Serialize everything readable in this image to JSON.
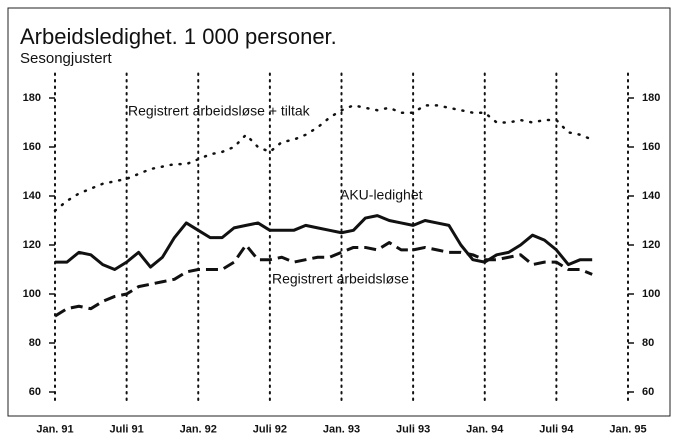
{
  "chart_data": {
    "type": "line",
    "title": "Arbeidsledighet. 1 000 personer.",
    "subtitle": "Sesongjustert",
    "x": [
      "1991-01",
      "1991-02",
      "1991-03",
      "1991-04",
      "1991-05",
      "1991-06",
      "1991-07",
      "1991-08",
      "1991-09",
      "1991-10",
      "1991-11",
      "1991-12",
      "1992-01",
      "1992-02",
      "1992-03",
      "1992-04",
      "1992-05",
      "1992-06",
      "1992-07",
      "1992-08",
      "1992-09",
      "1992-10",
      "1992-11",
      "1992-12",
      "1993-01",
      "1993-02",
      "1993-03",
      "1993-04",
      "1993-05",
      "1993-06",
      "1993-07",
      "1993-08",
      "1993-09",
      "1993-10",
      "1993-11",
      "1993-12",
      "1994-01",
      "1994-02",
      "1994-03",
      "1994-04",
      "1994-05",
      "1994-06",
      "1994-07",
      "1994-08",
      "1994-09",
      "1994-10"
    ],
    "series": [
      {
        "name": "Registrert arbeidsløse + tiltak",
        "color": "#111111",
        "dash": "dotted",
        "values": [
          134,
          138,
          141,
          143,
          145,
          146,
          147,
          149,
          151,
          152,
          153,
          153,
          155,
          157,
          158,
          160,
          165,
          160,
          158,
          162,
          163,
          165,
          168,
          172,
          175,
          177,
          176,
          175,
          176,
          174,
          174,
          177,
          177,
          176,
          175,
          174,
          174,
          170,
          170,
          171,
          170,
          171,
          171,
          166,
          165,
          163
        ]
      },
      {
        "name": "AKU-ledighet",
        "color": "#111111",
        "dash": "solid",
        "values": [
          113,
          113,
          117,
          116,
          112,
          110,
          113,
          117,
          111,
          115,
          123,
          129,
          126,
          123,
          123,
          127,
          128,
          129,
          126,
          126,
          126,
          128,
          127,
          126,
          125,
          126,
          131,
          132,
          130,
          129,
          128,
          130,
          129,
          128,
          120,
          114,
          113,
          116,
          117,
          120,
          124,
          122,
          118,
          112,
          114,
          114
        ]
      },
      {
        "name": "Registrert arbeidsløse",
        "color": "#111111",
        "dash": "dashed",
        "values": [
          91,
          94,
          95,
          94,
          97,
          99,
          100,
          103,
          104,
          105,
          106,
          109,
          110,
          110,
          110,
          113,
          120,
          114,
          114,
          115,
          113,
          114,
          115,
          115,
          117,
          119,
          119,
          118,
          121,
          118,
          118,
          119,
          118,
          117,
          117,
          116,
          114,
          114,
          115,
          116,
          112,
          113,
          113,
          110,
          110,
          108
        ]
      }
    ],
    "xlim": [
      "1991-01",
      "1995-01"
    ],
    "xticks": [
      {
        "value": "1991-01",
        "label": "Jan. 91"
      },
      {
        "value": "1991-07",
        "label": "Juli 91"
      },
      {
        "value": "1992-01",
        "label": "Jan. 92"
      },
      {
        "value": "1992-07",
        "label": "Juli 92"
      },
      {
        "value": "1993-01",
        "label": "Jan. 93"
      },
      {
        "value": "1993-07",
        "label": "Juli 93"
      },
      {
        "value": "1994-01",
        "label": "Jan. 94"
      },
      {
        "value": "1994-07",
        "label": "Juli 94"
      },
      {
        "value": "1995-01",
        "label": "Jan. 95"
      }
    ],
    "ylim": [
      50,
      190
    ],
    "yticks": [
      60,
      80,
      100,
      120,
      140,
      160,
      180
    ],
    "grid": true
  }
}
